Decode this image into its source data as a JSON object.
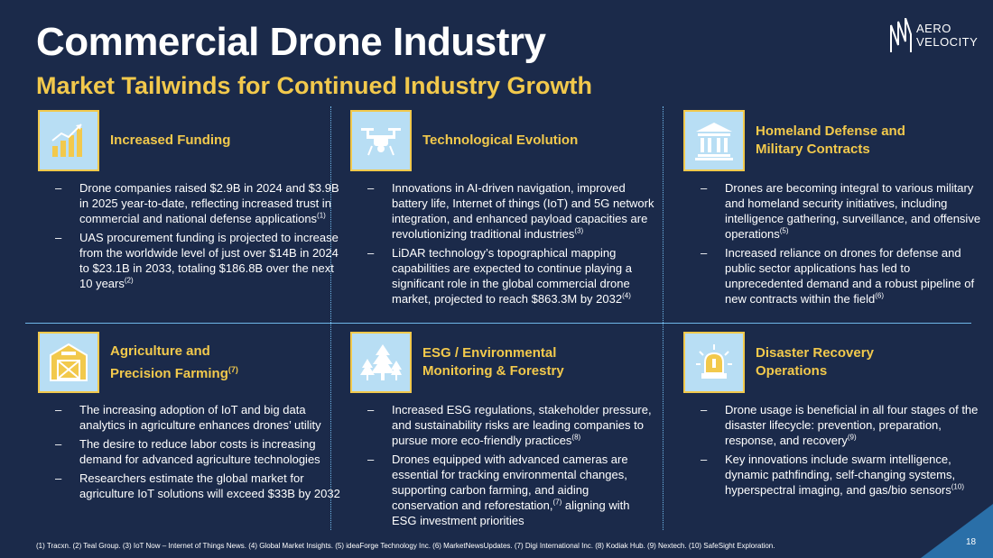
{
  "header": {
    "title": "Commercial Drone Industry",
    "subtitle": "Market Tailwinds for Continued Industry Growth"
  },
  "logo": {
    "line1": "AERO",
    "line2": "VELOCITY"
  },
  "sections": {
    "funding": {
      "icon": "bar-chart-icon",
      "title": "Increased Funding",
      "bullets": [
        {
          "text": "Drone companies raised $2.9B in 2024 and $3.9B in 2025 year-to-date, reflecting increased trust in commercial and national defense applications",
          "ref": "(1)"
        },
        {
          "text": "UAS procurement funding is projected to increase from the worldwide level of just over $14B in 2024 to $23.1B in 2033, totaling $186.8B over the next 10 years",
          "ref": "(2)"
        }
      ]
    },
    "tech": {
      "icon": "drone-icon",
      "title": "Technological Evolution",
      "bullets": [
        {
          "text": "Innovations in AI-driven navigation, improved battery life, Internet of things (IoT) and 5G network integration, and enhanced payload capacities are revolutionizing traditional industries",
          "ref": "(3)"
        },
        {
          "text": "LiDAR technology’s topographical mapping capabilities are expected to continue playing a significant role in the global commercial drone market, projected to reach $863.3M by 2032",
          "ref": "(4)"
        }
      ]
    },
    "defense": {
      "icon": "government-building-icon",
      "title_line1": "Homeland Defense and",
      "title_line2": "Military Contracts",
      "bullets": [
        {
          "text": "Drones are becoming integral to various military and homeland security initiatives, including intelligence gathering, surveillance, and offensive operations",
          "ref": "(5)"
        },
        {
          "text": "Increased reliance on drones for defense and public sector applications has led to unprecedented demand and a robust pipeline of new contracts within the field",
          "ref": "(6)"
        }
      ]
    },
    "agriculture": {
      "icon": "barn-icon",
      "title_line1": "Agriculture and",
      "title_line2": "Precision Farming",
      "title_ref": "(7)",
      "bullets": [
        {
          "text": "The increasing adoption of IoT and big data analytics in agriculture enhances drones’ utility",
          "ref": ""
        },
        {
          "text": "The desire to reduce labor costs is increasing demand for advanced agriculture technologies",
          "ref": ""
        },
        {
          "text": "Researchers estimate the global market for agriculture IoT solutions will exceed $33B by 2032",
          "ref": ""
        }
      ]
    },
    "esg": {
      "icon": "forest-icon",
      "title_line1": "ESG / Environmental",
      "title_line2": "Monitoring & Forestry",
      "bullets": [
        {
          "text": "Increased ESG regulations, stakeholder pressure, and sustainability risks are leading companies to pursue more eco-friendly practices",
          "ref": "(8)"
        },
        {
          "text_a": "Drones equipped with advanced cameras are essential for tracking environmental changes, supporting carbon farming, and aiding conservation and reforestation,",
          "ref": "(7)",
          "text_b": " aligning with ESG investment priorities"
        }
      ]
    },
    "disaster": {
      "icon": "emergency-light-icon",
      "title_line1": "Disaster Recovery",
      "title_line2": "Operations",
      "bullets": [
        {
          "text": "Drone usage is beneficial in all four stages of the disaster lifecycle: prevention, preparation, response, and recovery",
          "ref": "(9)"
        },
        {
          "text": "Key innovations include swarm intelligence, dynamic pathfinding, self-changing systems, hyperspectral imaging, and gas/bio sensors",
          "ref": "(10)"
        }
      ]
    }
  },
  "bullet_marker": "–",
  "footnote": "(1) Tracxn. (2) Teal Group. (3) IoT Now – Internet of Things News. (4) Global Market Insights. (5) ideaForge Technology Inc. (6) MarketNewsUpdates. (7) Digi International Inc. (8) Kodiak Hub. (9) Nextech. (10) SafeSight Exploration.",
  "page_number": "18",
  "colors": {
    "background": "#1b2a4a",
    "accent_yellow": "#f2c94c",
    "icon_bg": "#b8def4",
    "divider": "#6fb6e8"
  }
}
